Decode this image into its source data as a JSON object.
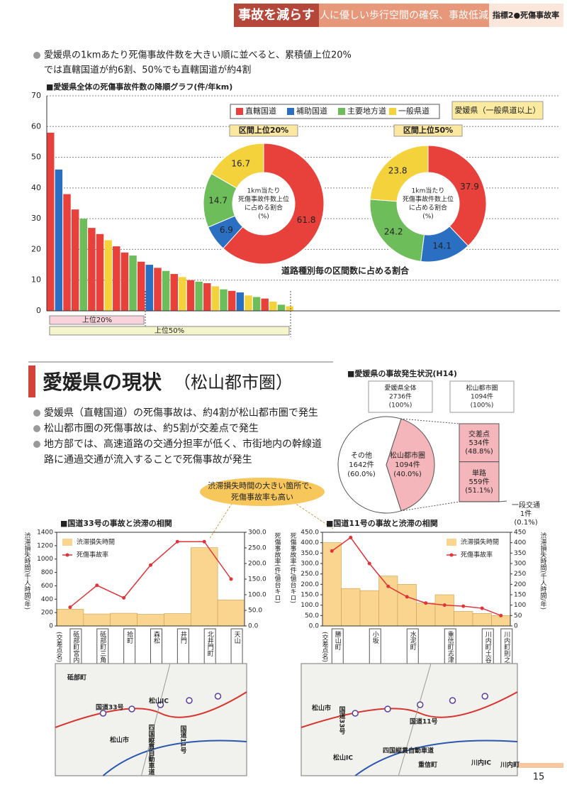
{
  "header": {
    "title": "事故を減らす",
    "subtitle": "人に優しい歩行空間の確保、事故低減",
    "indicator": "指標2●死傷事故率"
  },
  "intro": {
    "lines": [
      "愛媛県の1kmあたり死傷事故件数を大きい順に並べると、累積値上位20%",
      "では直轄国道が約6割、50%でも直轄国道が約4割"
    ]
  },
  "section": {
    "title": "愛媛県の現状",
    "title_suffix": "（松山都市圏）",
    "bullets": [
      [
        "愛媛県（直轄国道）の死傷事故は、約4割が松山都市圏で発生"
      ],
      [
        "松山都市圏の死傷事故は、約5割が交差点で発生"
      ],
      [
        "地方部では、高速道路の交通分担率が低く、市街地内の幹線道",
        "路に通過交通が流入することで死傷事故が発生"
      ]
    ]
  },
  "callout": {
    "lines": [
      "渋滞損失時間の大きい箇所で、",
      "死傷事故率も高い"
    ]
  },
  "page_number": "15",
  "chart_data": [
    {
      "type": "bar",
      "title": "■愛媛県全体の死傷事故件数の降順グラフ(件/年km)",
      "series": [
        {
          "name": "直轄国道",
          "color": "#e8403a",
          "values": [
            58,
            null,
            38,
            33,
            null,
            27,
            25,
            null,
            21,
            19,
            null,
            16,
            null,
            14,
            null,
            12,
            null,
            10,
            null,
            9,
            null,
            null,
            6.5,
            null,
            null,
            null,
            4,
            null,
            null,
            null
          ]
        },
        {
          "name": "補助国道",
          "color": "#2b6fc2",
          "values": [
            null,
            46,
            null,
            null,
            null,
            null,
            null,
            null,
            null,
            null,
            null,
            null,
            15,
            null,
            null,
            null,
            null,
            null,
            null,
            null,
            null,
            null,
            null,
            6,
            null,
            null,
            null,
            null,
            null,
            null
          ]
        },
        {
          "name": "主要地方道",
          "color": "#6dbd5b",
          "values": [
            null,
            null,
            null,
            null,
            30,
            null,
            null,
            null,
            null,
            null,
            18,
            null,
            null,
            null,
            13,
            null,
            null,
            null,
            9.5,
            null,
            null,
            7,
            null,
            null,
            null,
            4.5,
            null,
            null,
            2,
            null
          ]
        },
        {
          "name": "一般県道",
          "color": "#f4d23c",
          "values": [
            null,
            null,
            null,
            null,
            null,
            null,
            null,
            23,
            null,
            null,
            null,
            null,
            null,
            null,
            null,
            null,
            11,
            null,
            null,
            null,
            8,
            null,
            null,
            null,
            5,
            null,
            null,
            3,
            null,
            1.5
          ]
        }
      ],
      "ylim": [
        0,
        70
      ],
      "yticks": [
        0,
        10,
        20,
        30,
        40,
        50,
        60,
        70
      ],
      "grid": true,
      "region_label": "愛媛県（一般県道以上）",
      "caption": "道路種別毎の区間数に占める割合",
      "annotations": [
        "上位20%",
        "上位50%"
      ]
    },
    {
      "type": "donut",
      "title": "区間上位20%",
      "center_text": [
        "1km当たり",
        "死傷事故件数上位",
        "に占める割合",
        "(%)"
      ],
      "values": [
        61.8,
        6.9,
        14.7,
        16.7
      ],
      "colors": [
        "#e8403a",
        "#2b6fc2",
        "#6dbd5b",
        "#f4d23c"
      ]
    },
    {
      "type": "donut",
      "title": "区間上位50%",
      "center_text": [
        "1km当たり",
        "死傷事故件数上位",
        "に占める割合",
        "(%)"
      ],
      "values": [
        37.9,
        14.1,
        24.2,
        23.8
      ],
      "colors": [
        "#e8403a",
        "#2b6fc2",
        "#6dbd5b",
        "#f4d23c"
      ]
    },
    {
      "type": "pie",
      "title": "■愛媛県の事故発生状況(H14)",
      "total_boxes": [
        {
          "lines": [
            "愛媛県全体",
            "2736件",
            "(100%)"
          ]
        },
        {
          "lines": [
            "松山都市圏",
            "1094件",
            "(100%)"
          ]
        }
      ],
      "categories": [
        "その他",
        "松山都市圏"
      ],
      "counts": [
        1642,
        1094
      ],
      "count_labels": [
        "1642件",
        "1094件"
      ],
      "values": [
        60.0,
        40.0
      ],
      "value_labels": [
        "(60.0%)",
        "(40.0%)"
      ],
      "colors": [
        "#ffffff",
        "#f4b5bb"
      ],
      "breakdown": {
        "categories": [
          "交差点",
          "単路",
          "一段交通"
        ],
        "counts": [
          534,
          559,
          1
        ],
        "count_labels": [
          "534件",
          "559件",
          "1件"
        ],
        "values": [
          48.8,
          51.1,
          0.1
        ],
        "value_labels": [
          "(48.8%)",
          "(51.1%)",
          "(0.1%)"
        ],
        "color": "#f4b5bb"
      }
    },
    {
      "type": "combo",
      "title": "■国道33号の事故と渋滞の相関",
      "category_header": "(交差点名)",
      "categories": [
        "砥部町宮内",
        "砥部町三角",
        "拾町",
        "森松",
        "井門",
        "北井門町",
        "天山"
      ],
      "series": [
        {
          "name": "渋滞損失時間",
          "kind": "step",
          "axis": "y",
          "color": "#f9d58f",
          "values": [
            250,
            180,
            190,
            175,
            185,
            1170,
            390
          ]
        },
        {
          "name": "死傷事故率",
          "kind": "line",
          "axis": "y2",
          "color": "#e0343a",
          "values": [
            60,
            130,
            90,
            195,
            270,
            270,
            150
          ]
        }
      ],
      "ylabel": "渋滞損失時間(千人時間/年)",
      "y2label": "死傷事故率(件/億台キロ)",
      "ylim": [
        0,
        1400
      ],
      "yticks": [
        0,
        200,
        400,
        600,
        800,
        1000,
        1200,
        1400
      ],
      "y2lim": [
        0,
        300
      ],
      "y2ticks": [
        {
          "value": 0,
          "label": "0.0"
        },
        {
          "value": 50,
          "label": "50.0"
        },
        {
          "value": 100,
          "label": "100.0"
        },
        {
          "value": 150,
          "label": "150.0"
        },
        {
          "value": 200,
          "label": "200.0"
        },
        {
          "value": 250,
          "label": "250.0"
        },
        {
          "value": 300,
          "label": "300.0"
        }
      ],
      "map_labels": [
        "国道33号",
        "四国縦貫自動車道",
        "国道11号",
        "松山市",
        "砥部町",
        "松山IC"
      ]
    },
    {
      "type": "combo",
      "title": "■国道11号の事故と渋滞の相関",
      "category_header": "(交差点名)",
      "categories": [
        "勝山町",
        null,
        "小坂",
        null,
        "水泥町",
        null,
        "重信町志津川",
        null,
        "川内町土谷小学校前",
        "川内町則之内"
      ],
      "series": [
        {
          "name": "渋滞損失時間",
          "kind": "step",
          "axis": "y2",
          "color": "#f9d58f",
          "values": [
            400,
            180,
            170,
            240,
            200,
            110,
            150,
            70,
            60,
            50
          ]
        },
        {
          "name": "死傷事故率",
          "kind": "line",
          "axis": "y",
          "color": "#e0343a",
          "values": [
            360,
            425,
            300,
            190,
            140,
            110,
            100,
            95,
            85,
            50
          ]
        }
      ],
      "ylabel": "死傷事故率(件/億台キロ)",
      "y2label": "渋滞損失時間(千人時間/年)",
      "ylim": [
        0,
        450
      ],
      "yticks": [
        {
          "value": 0,
          "label": "0.0"
        },
        {
          "value": 50,
          "label": "50.0"
        },
        {
          "value": 100,
          "label": "100.0"
        },
        {
          "value": 150,
          "label": "150.0"
        },
        {
          "value": 200,
          "label": "200.0"
        },
        {
          "value": 250,
          "label": "250.0"
        },
        {
          "value": 300,
          "label": "300.0"
        },
        {
          "value": 350,
          "label": "350.0"
        },
        {
          "value": 400,
          "label": "400.0"
        },
        {
          "value": 450,
          "label": "450.0"
        }
      ],
      "y2lim": [
        0,
        450
      ],
      "y2ticks": [
        0,
        50,
        100,
        150,
        200,
        250,
        300,
        350,
        400,
        450
      ],
      "map_labels": [
        "松山市",
        "国道33号",
        "国道11号",
        "四国縦貫自動車道",
        "松山IC",
        "重信町",
        "川内IC",
        "川内町"
      ]
    }
  ]
}
